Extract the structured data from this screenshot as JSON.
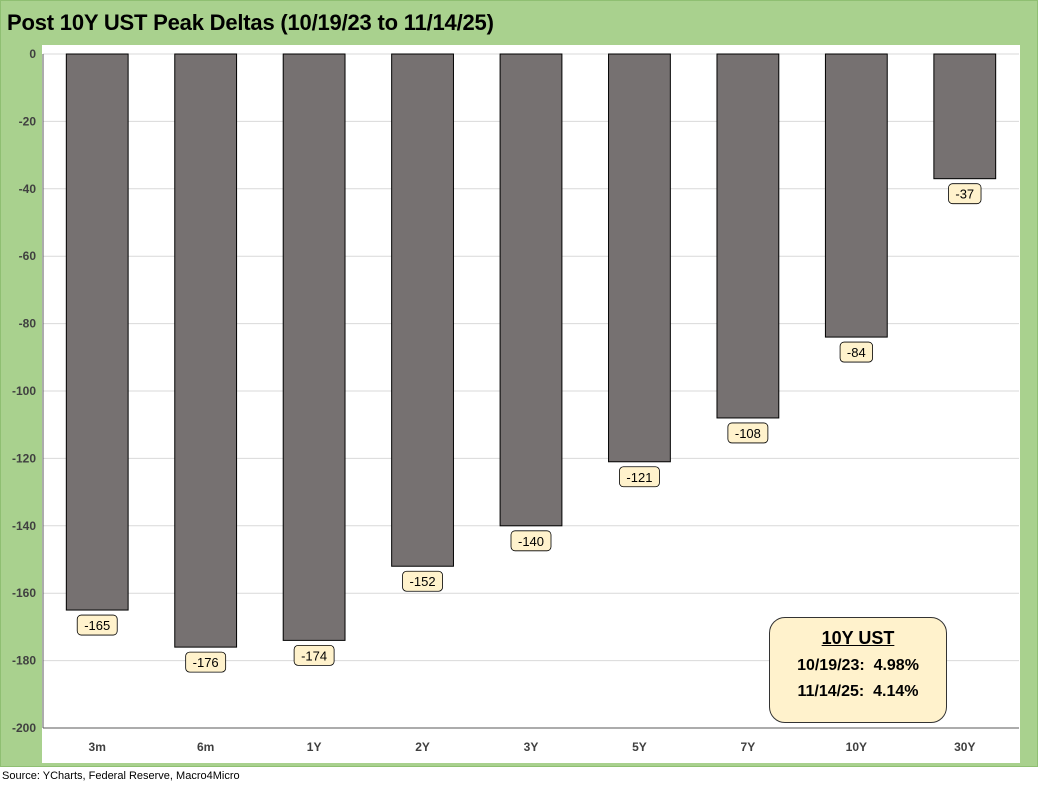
{
  "title": "Post 10Y UST Peak Deltas (10/19/23 to 11/14/25)",
  "source": "Source: YCharts, Federal Reserve, Macro4Micro",
  "info_box": {
    "title": "10Y UST",
    "line1": "10/19/23:  4.98%",
    "line2": "11/14/25:  4.14%"
  },
  "colors": {
    "frame": "#a9d18e",
    "bar": "#767171",
    "label_bg": "#fff2cc"
  },
  "chart_data": {
    "type": "bar",
    "title": "Post 10Y UST Peak Deltas (10/19/23 to 11/14/25)",
    "categories": [
      "3m",
      "6m",
      "1Y",
      "2Y",
      "3Y",
      "5Y",
      "7Y",
      "10Y",
      "30Y"
    ],
    "values": [
      -165,
      -176,
      -174,
      -152,
      -140,
      -121,
      -108,
      -84,
      -37
    ],
    "data_labels": [
      "-165",
      "-176",
      "-174",
      "-152",
      "-140",
      "-121",
      "-108",
      "-84",
      "-37"
    ],
    "yticks": [
      0,
      -20,
      -40,
      -60,
      -80,
      -100,
      -120,
      -140,
      -160,
      -180,
      -200
    ],
    "ytick_labels": [
      "0",
      "-20",
      "-40",
      "-60",
      "-80",
      "-100",
      "-120",
      "-140",
      "-160",
      "-180",
      "-200"
    ],
    "ylim": [
      -200,
      0
    ],
    "grid": true,
    "legend": "none"
  }
}
